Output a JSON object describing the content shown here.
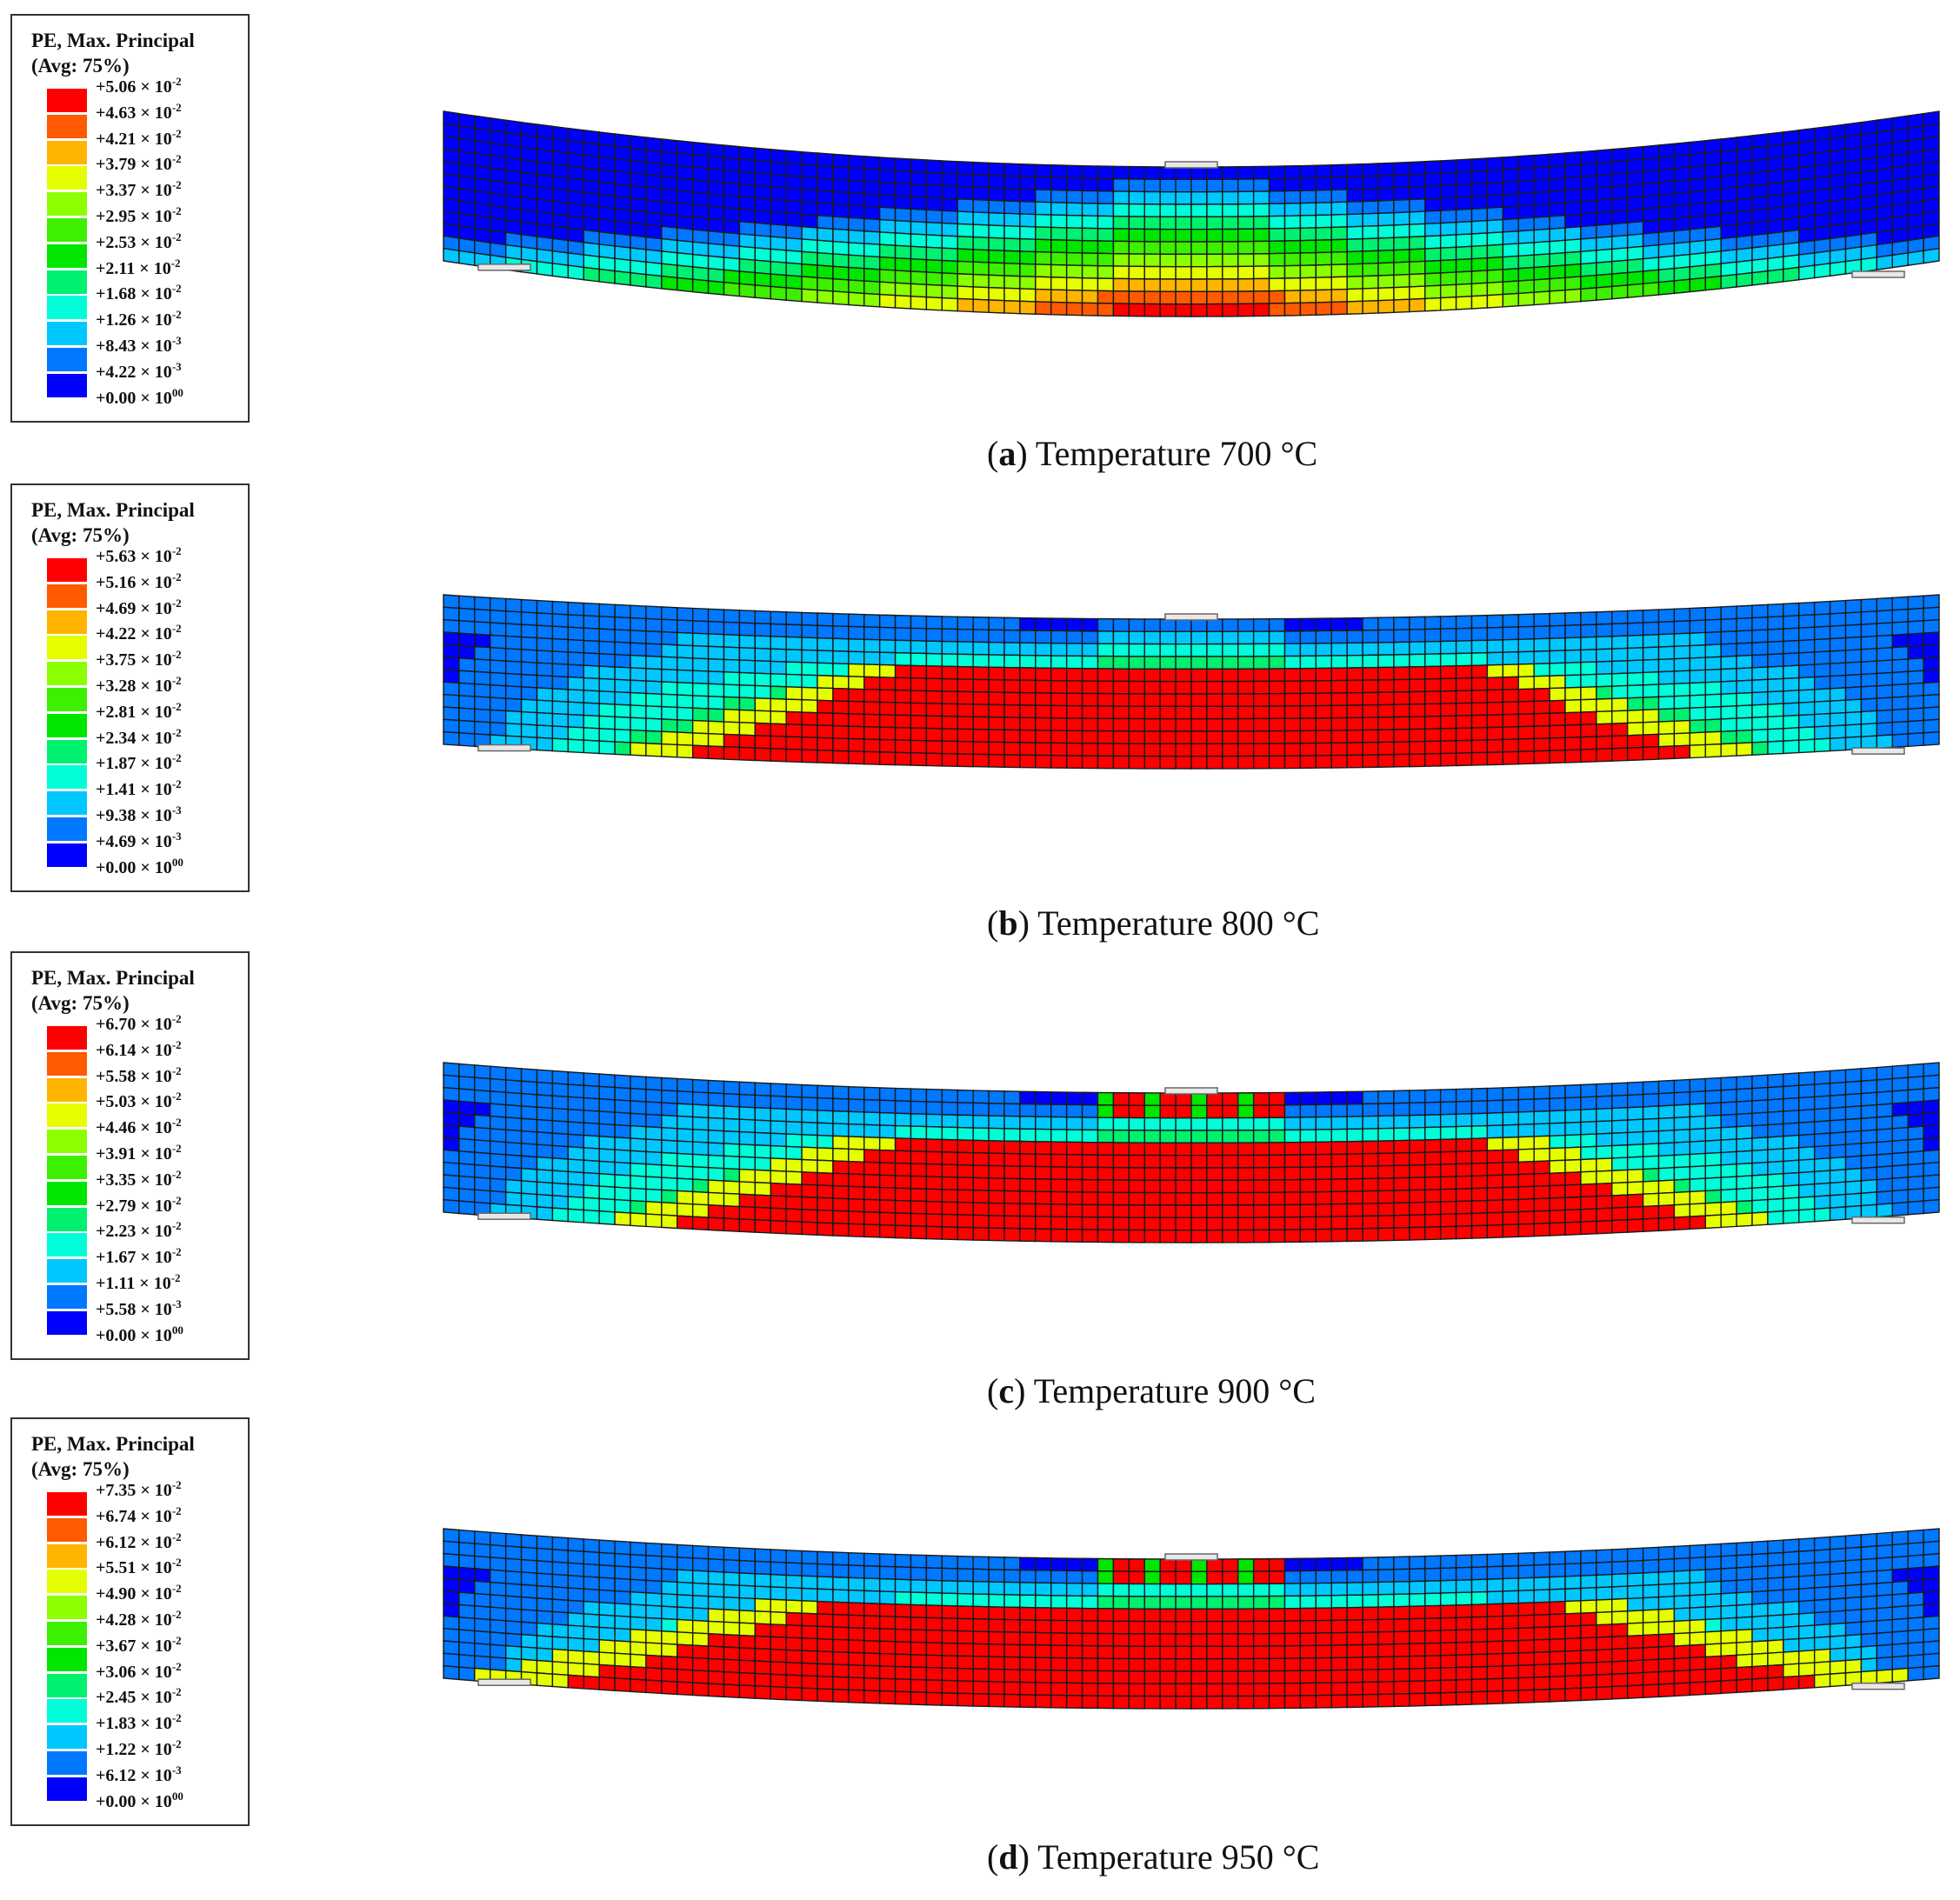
{
  "legend_colors": [
    "#ff0000",
    "#ff5a00",
    "#ffb400",
    "#e6ff00",
    "#8cff00",
    "#3cf000",
    "#00e600",
    "#00f070",
    "#00ffd8",
    "#00c8ff",
    "#0078ff",
    "#0000ff"
  ],
  "panels": [
    {
      "legend_title_line1": "PE, Max. Principal",
      "legend_title_line2": "(Avg: 75%)",
      "ticks": [
        {
          "m": "+5.06",
          "e": "-2"
        },
        {
          "m": "+4.63",
          "e": "-2"
        },
        {
          "m": "+4.21",
          "e": "-2"
        },
        {
          "m": "+3.79",
          "e": "-2"
        },
        {
          "m": "+3.37",
          "e": "-2"
        },
        {
          "m": "+2.95",
          "e": "-2"
        },
        {
          "m": "+2.53",
          "e": "-2"
        },
        {
          "m": "+2.11",
          "e": "-2"
        },
        {
          "m": "+1.68",
          "e": "-2"
        },
        {
          "m": "+1.26",
          "e": "-2"
        },
        {
          "m": "+8.43",
          "e": "-3"
        },
        {
          "m": "+4.22",
          "e": "-3"
        },
        {
          "m": "+0.00",
          "e": "00"
        }
      ],
      "caption_letter": "a",
      "caption_text": " Temperature 700 °C",
      "red_extent": 0.12,
      "top_hot": 0.0
    },
    {
      "legend_title_line1": "PE, Max. Principal",
      "legend_title_line2": "(Avg: 75%)",
      "ticks": [
        {
          "m": "+5.63",
          "e": "-2"
        },
        {
          "m": "+5.16",
          "e": "-2"
        },
        {
          "m": "+4.69",
          "e": "-2"
        },
        {
          "m": "+4.22",
          "e": "-2"
        },
        {
          "m": "+3.75",
          "e": "-2"
        },
        {
          "m": "+3.28",
          "e": "-2"
        },
        {
          "m": "+2.81",
          "e": "-2"
        },
        {
          "m": "+2.34",
          "e": "-2"
        },
        {
          "m": "+1.87",
          "e": "-2"
        },
        {
          "m": "+1.41",
          "e": "-2"
        },
        {
          "m": "+9.38",
          "e": "-3"
        },
        {
          "m": "+4.69",
          "e": "-3"
        },
        {
          "m": "+0.00",
          "e": "00"
        }
      ],
      "caption_letter": "b",
      "caption_text": " Temperature 800 °C",
      "red_extent": 0.62,
      "top_hot": 0.0
    },
    {
      "legend_title_line1": "PE, Max. Principal",
      "legend_title_line2": "(Avg: 75%)",
      "ticks": [
        {
          "m": "+6.70",
          "e": "-2"
        },
        {
          "m": "+6.14",
          "e": "-2"
        },
        {
          "m": "+5.58",
          "e": "-2"
        },
        {
          "m": "+5.03",
          "e": "-2"
        },
        {
          "m": "+4.46",
          "e": "-2"
        },
        {
          "m": "+3.91",
          "e": "-2"
        },
        {
          "m": "+3.35",
          "e": "-2"
        },
        {
          "m": "+2.79",
          "e": "-2"
        },
        {
          "m": "+2.23",
          "e": "-2"
        },
        {
          "m": "+1.67",
          "e": "-2"
        },
        {
          "m": "+1.11",
          "e": "-2"
        },
        {
          "m": "+5.58",
          "e": "-3"
        },
        {
          "m": "+0.00",
          "e": "00"
        }
      ],
      "caption_letter": "c",
      "caption_text": " Temperature 900 °C",
      "red_extent": 0.64,
      "top_hot": 1.0
    },
    {
      "legend_title_line1": "PE, Max. Principal",
      "legend_title_line2": "(Avg: 75%)",
      "ticks": [
        {
          "m": "+7.35",
          "e": "-2"
        },
        {
          "m": "+6.74",
          "e": "-2"
        },
        {
          "m": "+6.12",
          "e": "-2"
        },
        {
          "m": "+5.51",
          "e": "-2"
        },
        {
          "m": "+4.90",
          "e": "-2"
        },
        {
          "m": "+4.28",
          "e": "-2"
        },
        {
          "m": "+3.67",
          "e": "-2"
        },
        {
          "m": "+3.06",
          "e": "-2"
        },
        {
          "m": "+2.45",
          "e": "-2"
        },
        {
          "m": "+1.83",
          "e": "-2"
        },
        {
          "m": "+1.22",
          "e": "-2"
        },
        {
          "m": "+6.12",
          "e": "-3"
        },
        {
          "m": "+0.00",
          "e": "00"
        }
      ],
      "caption_letter": "d",
      "caption_text": " Temperature 950 °C",
      "red_extent": 0.78,
      "top_hot": 1.0
    }
  ]
}
